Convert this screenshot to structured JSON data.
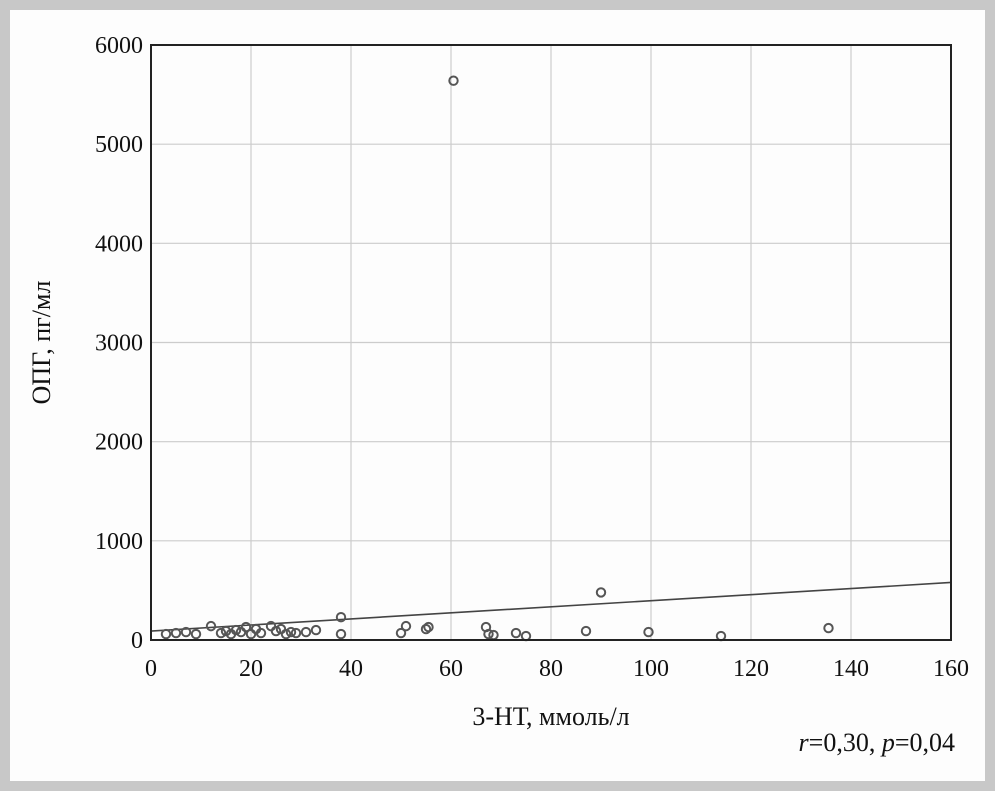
{
  "chart_data": {
    "type": "scatter",
    "title": "",
    "xlabel": "3-НТ, ммоль/л",
    "ylabel": "ОПГ, пг/мл",
    "xlim": [
      0,
      160
    ],
    "ylim": [
      0,
      6000
    ],
    "x_ticks": [
      0,
      20,
      40,
      60,
      80,
      100,
      120,
      140,
      160
    ],
    "y_ticks": [
      0,
      1000,
      2000,
      3000,
      4000,
      5000,
      6000
    ],
    "grid": true,
    "legend": "none",
    "colors": {
      "points": "#555555",
      "line": "#444444",
      "grid": "#cccccc",
      "axis": "#222222"
    },
    "series": [
      {
        "points": [
          {
            "x": 3,
            "y": 60
          },
          {
            "x": 5,
            "y": 70
          },
          {
            "x": 7,
            "y": 80
          },
          {
            "x": 9,
            "y": 60
          },
          {
            "x": 12,
            "y": 140
          },
          {
            "x": 14,
            "y": 70
          },
          {
            "x": 15,
            "y": 90
          },
          {
            "x": 16,
            "y": 60
          },
          {
            "x": 17,
            "y": 100
          },
          {
            "x": 18,
            "y": 80
          },
          {
            "x": 19,
            "y": 130
          },
          {
            "x": 20,
            "y": 60
          },
          {
            "x": 21,
            "y": 110
          },
          {
            "x": 22,
            "y": 70
          },
          {
            "x": 24,
            "y": 140
          },
          {
            "x": 25,
            "y": 90
          },
          {
            "x": 26,
            "y": 110
          },
          {
            "x": 27,
            "y": 60
          },
          {
            "x": 28,
            "y": 80
          },
          {
            "x": 29,
            "y": 70
          },
          {
            "x": 31,
            "y": 80
          },
          {
            "x": 33,
            "y": 100
          },
          {
            "x": 38,
            "y": 230
          },
          {
            "x": 38,
            "y": 60
          },
          {
            "x": 50,
            "y": 70
          },
          {
            "x": 51,
            "y": 140
          },
          {
            "x": 55,
            "y": 110
          },
          {
            "x": 55.5,
            "y": 130
          },
          {
            "x": 60.5,
            "y": 5640
          },
          {
            "x": 67,
            "y": 130
          },
          {
            "x": 67.5,
            "y": 60
          },
          {
            "x": 68.5,
            "y": 50
          },
          {
            "x": 73,
            "y": 70
          },
          {
            "x": 75,
            "y": 40
          },
          {
            "x": 87,
            "y": 90
          },
          {
            "x": 90,
            "y": 480
          },
          {
            "x": 99.5,
            "y": 80
          },
          {
            "x": 114,
            "y": 40
          },
          {
            "x": 135.5,
            "y": 120
          }
        ]
      }
    ],
    "fit_line": {
      "x": [
        0,
        160
      ],
      "y": [
        90,
        580
      ]
    }
  },
  "stats": {
    "r_sym": "r",
    "r_val": "=0,30, ",
    "p_sym": "p",
    "p_val": "=0,04"
  }
}
